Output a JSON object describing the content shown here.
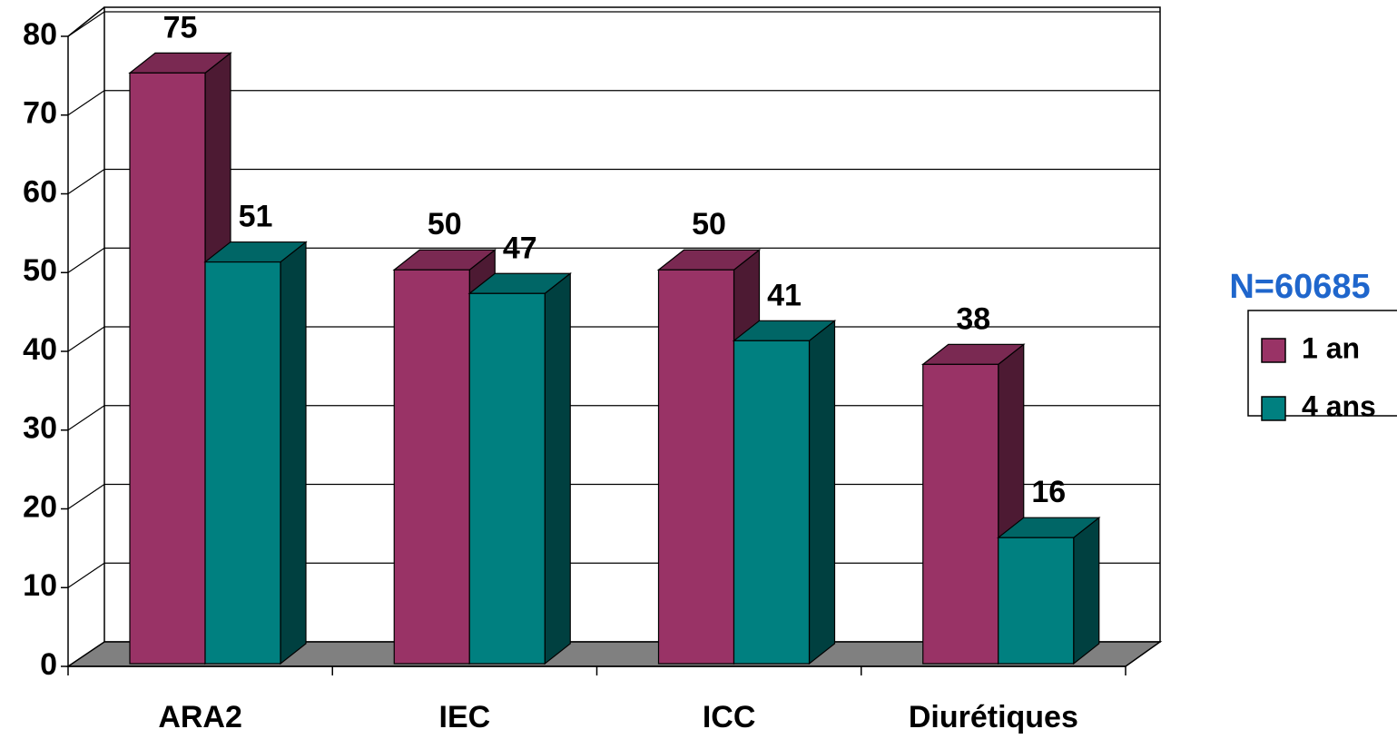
{
  "chart_data": {
    "type": "bar3d",
    "legend_title": "N=60685",
    "categories": [
      "ARA2",
      "IEC",
      "ICC",
      "Diurétiques"
    ],
    "series": [
      {
        "name": "1 an",
        "color": "#993366",
        "values": [
          75,
          50,
          50,
          38
        ]
      },
      {
        "name": "4 ans",
        "color": "#008080",
        "values": [
          51,
          47,
          41,
          16
        ]
      }
    ],
    "ylim": [
      0,
      80
    ],
    "yticks": [
      0,
      10,
      20,
      30,
      40,
      50,
      60,
      70,
      80
    ],
    "grid": true,
    "legend": "right"
  }
}
